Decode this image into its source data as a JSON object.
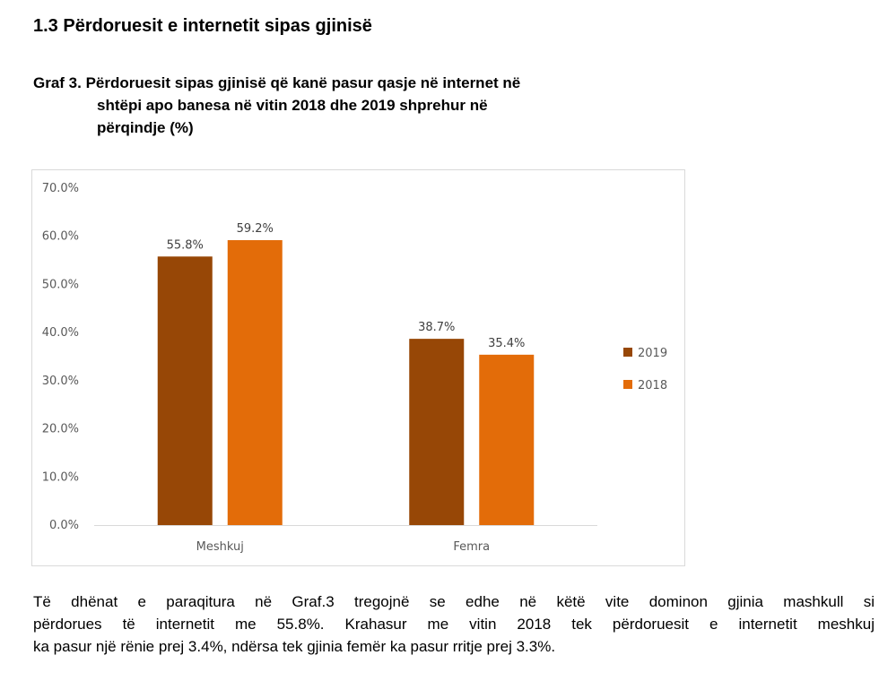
{
  "section": {
    "title": "1.3 Përdoruesit e internetit sipas gjinisë"
  },
  "figure": {
    "title_lines": [
      "Graf 3. Përdoruesit sipas gjinisë që kanë pasur qasje në internet në",
      "shtëpi apo banesa në vitin 2018 dhe 2019 shprehur në",
      "përqindje (%)"
    ]
  },
  "chart_data": {
    "type": "bar",
    "categories": [
      "Meshkuj",
      "Femra"
    ],
    "series": [
      {
        "name": "2019",
        "values": [
          55.8,
          38.7
        ],
        "labels": [
          "55.8%",
          "38.7%"
        ],
        "color": "#974706"
      },
      {
        "name": "2018",
        "values": [
          59.2,
          35.4
        ],
        "labels": [
          "59.2%",
          "35.4%"
        ],
        "color": "#E36C09"
      }
    ],
    "ylim": [
      0,
      70
    ],
    "yticks": [
      0,
      10,
      20,
      30,
      40,
      50,
      60,
      70
    ],
    "ytick_labels": [
      "0.0%",
      "10.0%",
      "20.0%",
      "30.0%",
      "40.0%",
      "50.0%",
      "60.0%",
      "70.0%"
    ],
    "legend_position": "right",
    "grid": false,
    "title": "",
    "xlabel": "",
    "ylabel": ""
  },
  "paragraph": {
    "lines": [
      "Të dhënat e paraqitura në Graf.3 tregojnë se edhe në këtë vite dominon gjinia mashkull si",
      "përdorues të internetit me 55.8%. Krahasur me vitin 2018 tek përdoruesit e internetit meshkuj",
      "ka pasur një rënie prej 3.4%, ndërsa tek gjinia femër ka pasur rritje prej 3.3%."
    ]
  },
  "colors": {
    "series_2019": "#974706",
    "series_2018": "#E36C09",
    "tick_text": "#595959",
    "axis": "#d9d9d9"
  }
}
